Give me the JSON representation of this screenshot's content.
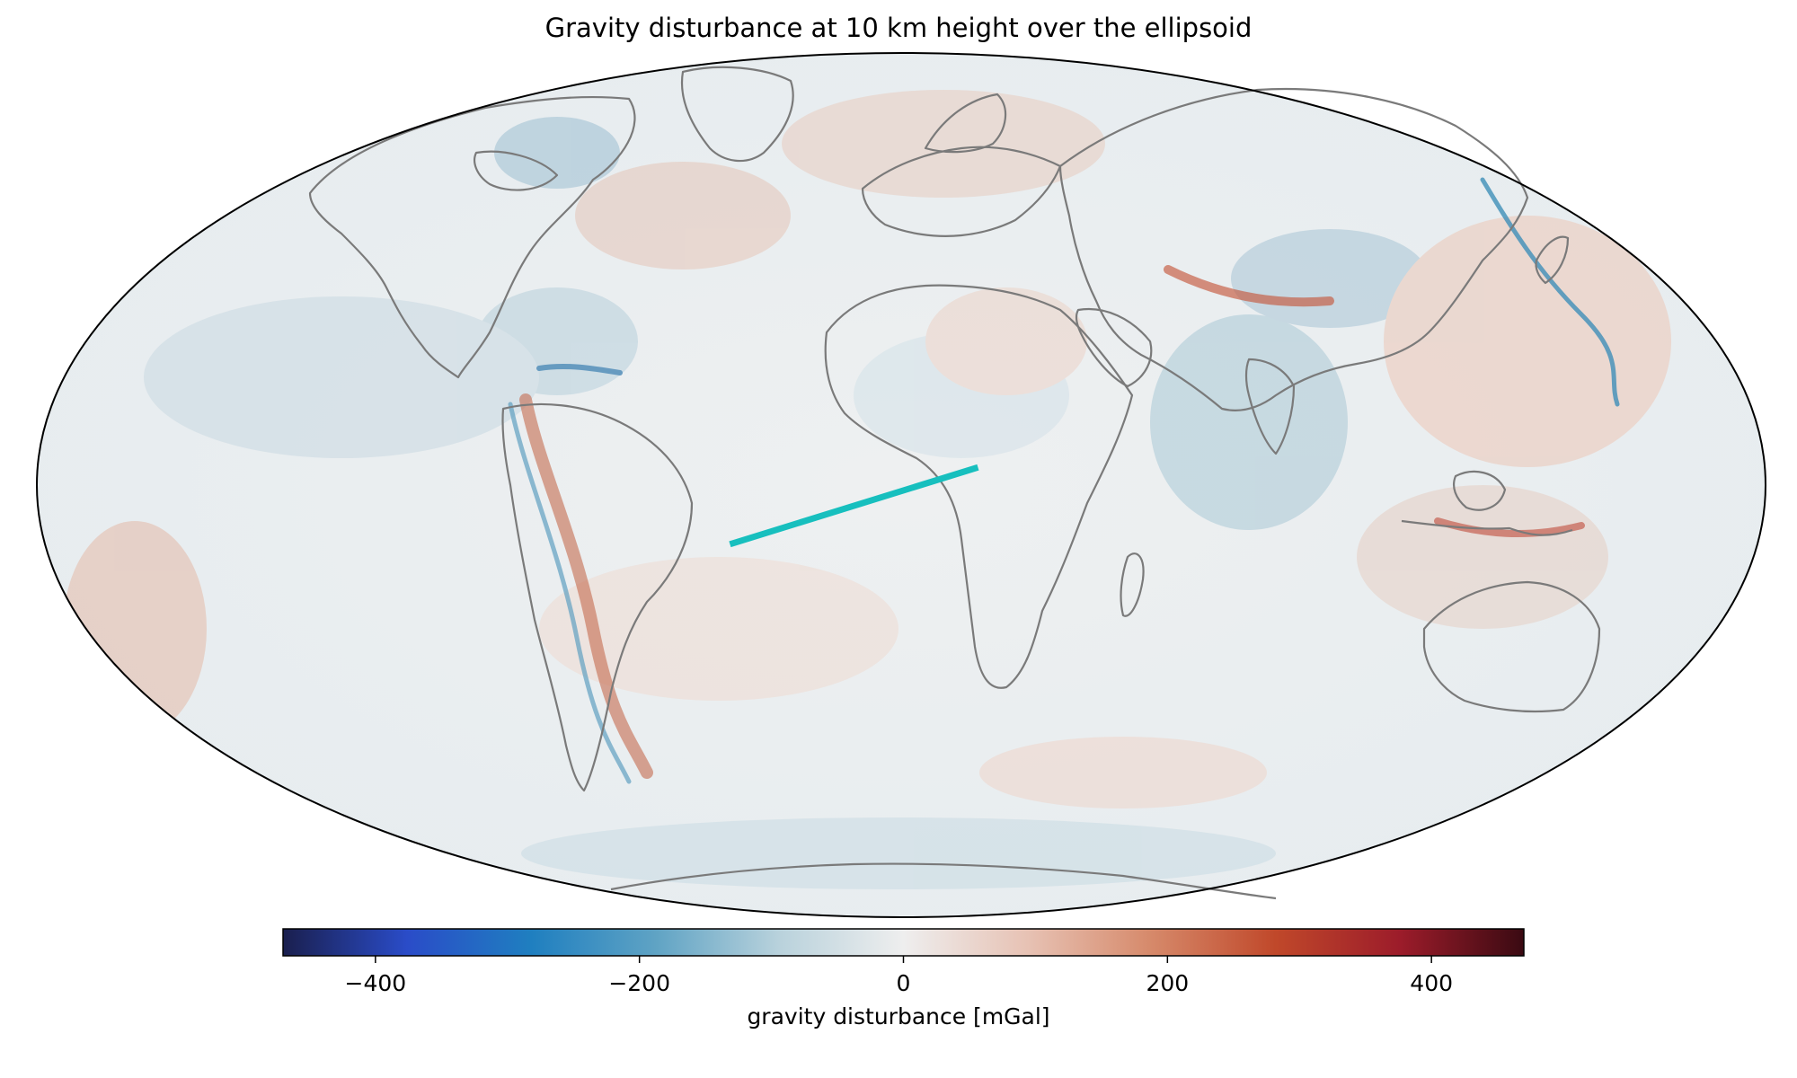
{
  "title": "Gravity disturbance at 10 km height over the ellipsoid",
  "projection": "Mollweide (centered on Greenwich)",
  "colormap": {
    "name": "diverging blue-white-red",
    "stops": [
      "#1a1f4e",
      "#2a4cc8",
      "#1f7fc0",
      "#5fa3c4",
      "#b9d2dc",
      "#eeeeee",
      "#e7c2b4",
      "#d6896a",
      "#c0482a",
      "#9c1c2a",
      "#3a0a12"
    ]
  },
  "colorbar": {
    "label": "gravity disturbance [mGal]",
    "range": [
      -470,
      470
    ],
    "ticks": [
      {
        "value": -400,
        "label": "−400"
      },
      {
        "value": -200,
        "label": "−200"
      },
      {
        "value": 0,
        "label": "0"
      },
      {
        "value": 200,
        "label": "200"
      },
      {
        "value": 400,
        "label": "400"
      }
    ]
  },
  "profile_line": {
    "color": "#17bfbe",
    "start": {
      "lon": -36,
      "lat": -10
    },
    "end": {
      "lon": 16,
      "lat": 3
    }
  },
  "coastline_color": "#7a7a7a"
}
